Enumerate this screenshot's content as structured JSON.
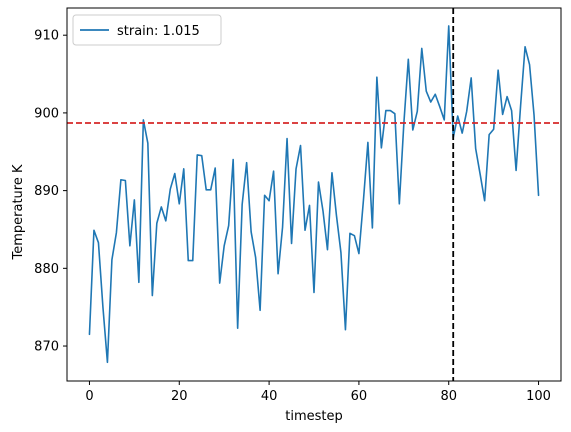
{
  "chart_data": {
    "type": "line",
    "xlabel": "timestep",
    "ylabel": "Temperature K",
    "xlim": [
      -5,
      105
    ],
    "ylim": [
      865.5,
      913.5
    ],
    "xticks": [
      0,
      20,
      40,
      60,
      80,
      100
    ],
    "yticks": [
      870,
      880,
      890,
      900,
      910
    ],
    "grid": false,
    "legend": {
      "position": "top-left"
    },
    "series": [
      {
        "name": "strain: 1.015",
        "color": "#1f77b4",
        "x": [
          0,
          1,
          2,
          3,
          4,
          5,
          6,
          7,
          8,
          9,
          10,
          11,
          12,
          13,
          14,
          15,
          16,
          17,
          18,
          19,
          20,
          21,
          22,
          23,
          24,
          25,
          26,
          27,
          28,
          29,
          30,
          31,
          32,
          33,
          34,
          35,
          36,
          37,
          38,
          39,
          40,
          41,
          42,
          43,
          44,
          45,
          46,
          47,
          48,
          49,
          50,
          51,
          52,
          53,
          54,
          55,
          56,
          57,
          58,
          59,
          60,
          61,
          62,
          63,
          64,
          65,
          66,
          67,
          68,
          69,
          70,
          71,
          72,
          73,
          74,
          75,
          76,
          77,
          78,
          79,
          80,
          81,
          82,
          83,
          84,
          85,
          86,
          87,
          88,
          89,
          90,
          91,
          92,
          93,
          94,
          95,
          96,
          97,
          98,
          99,
          100
        ],
        "y": [
          871.5,
          884.9,
          883.3,
          875.0,
          867.9,
          881.1,
          884.6,
          891.4,
          891.3,
          882.9,
          888.8,
          878.2,
          899.1,
          896.1,
          876.5,
          885.8,
          887.9,
          886.1,
          890.2,
          892.2,
          888.3,
          892.8,
          881.0,
          881.0,
          894.6,
          894.5,
          890.1,
          890.1,
          892.9,
          878.1,
          882.9,
          885.5,
          894.0,
          872.3,
          888.2,
          893.6,
          884.7,
          881.4,
          874.6,
          889.4,
          888.7,
          892.5,
          879.3,
          885.3,
          896.7,
          883.2,
          892.8,
          895.8,
          884.9,
          888.1,
          876.9,
          891.1,
          887.4,
          882.4,
          892.3,
          886.8,
          882.0,
          872.1,
          884.5,
          884.2,
          881.9,
          888.7,
          896.2,
          885.2,
          904.6,
          895.5,
          900.3,
          900.3,
          899.9,
          888.3,
          898.6,
          906.9,
          897.8,
          900.2,
          908.3,
          902.8,
          901.4,
          902.4,
          900.8,
          899.1,
          911.2,
          896.8,
          899.6,
          897.4,
          900.2,
          904.5,
          895.4,
          892.1,
          888.7,
          897.2,
          897.9,
          905.5,
          899.8,
          902.1,
          900.3,
          892.6,
          900.9,
          908.5,
          906.2,
          899.7,
          889.4
        ]
      }
    ],
    "reference_lines": [
      {
        "orientation": "horizontal",
        "value": 898.7,
        "color": "#d62728",
        "style": "dashed"
      },
      {
        "orientation": "vertical",
        "value": 81,
        "color": "#000000",
        "style": "dashed"
      }
    ]
  }
}
